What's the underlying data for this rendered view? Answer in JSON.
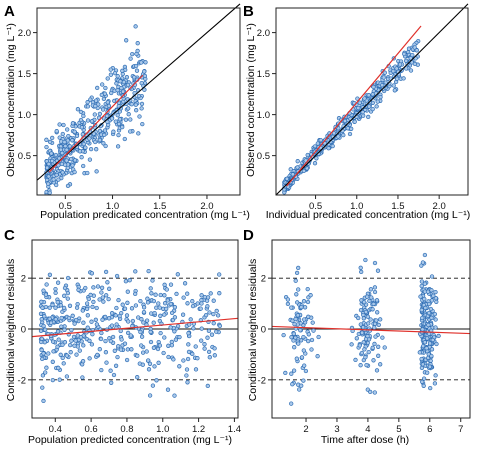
{
  "chart_data": [
    {
      "type": "scatter",
      "panel_label": "A",
      "xlabel": "Population predicated concentration (mg L⁻¹)",
      "ylabel": "Observed concentration (mg L⁻¹)",
      "xlim": [
        0.2,
        2.35
      ],
      "ylim": [
        0.02,
        2.3
      ],
      "xticks": [
        0.5,
        1.0,
        1.5,
        2.0
      ],
      "xtick_labels": [
        "0.5",
        "1.0",
        "1.5",
        "2.0"
      ],
      "yticks": [
        0.5,
        1.0,
        1.5,
        2.0
      ],
      "ytick_labels": [
        "0.5",
        "1.0",
        "1.5",
        "2.0"
      ],
      "identity_line": {
        "x": [
          0.2,
          2.35
        ],
        "y": [
          0.2,
          2.35
        ]
      },
      "trend_line": {
        "x": [
          0.33,
          1.32
        ],
        "y": [
          0.3,
          1.48
        ]
      },
      "scatter_series": {
        "x_range": [
          0.3,
          1.35
        ],
        "slope": 1.15,
        "intercept": -0.06,
        "spread": 0.2,
        "n": 480
      }
    },
    {
      "type": "scatter",
      "panel_label": "B",
      "xlabel": "Individual predicated concentration (mg L⁻¹)",
      "ylabel": "Observed concentration (mg L⁻¹)",
      "xlim": [
        0.02,
        2.35
      ],
      "ylim": [
        0.02,
        2.3
      ],
      "xticks": [
        0.5,
        1.0,
        1.5,
        2.0
      ],
      "xtick_labels": [
        "0.5",
        "1.0",
        "1.5",
        "2.0"
      ],
      "yticks": [
        0.5,
        1.0,
        1.5,
        2.0
      ],
      "ytick_labels": [
        "0.5",
        "1.0",
        "1.5",
        "2.0"
      ],
      "identity_line": {
        "x": [
          0.02,
          2.35
        ],
        "y": [
          0.02,
          2.35
        ]
      },
      "trend_line": {
        "x": [
          0.15,
          1.78
        ],
        "y": [
          0.13,
          2.08
        ]
      },
      "scatter_series": {
        "x_range": [
          0.12,
          1.75
        ],
        "slope": 1.03,
        "intercept": 0.0,
        "spread": 0.06,
        "n": 480
      }
    },
    {
      "type": "scatter",
      "panel_label": "C",
      "xlabel": "Population predicted concentration (mg L⁻¹)",
      "ylabel": "Conditional weighted residuals",
      "xlim": [
        0.27,
        1.42
      ],
      "ylim": [
        -3.5,
        3.5
      ],
      "xticks": [
        0.4,
        0.6,
        0.8,
        1.0,
        1.2,
        1.4
      ],
      "xtick_labels": [
        "0.4",
        "0.6",
        "0.8",
        "1.0",
        "1.2",
        "1.4"
      ],
      "yticks": [
        -2,
        0,
        2
      ],
      "ytick_labels": [
        "-2",
        "0",
        "2"
      ],
      "reference_lines": [
        {
          "y": 2,
          "style": "dashed"
        },
        {
          "y": 0,
          "style": "solid"
        },
        {
          "y": -2,
          "style": "dashed"
        }
      ],
      "trend_line": {
        "x": [
          0.27,
          1.42
        ],
        "y": [
          -0.3,
          0.42
        ]
      },
      "scatter_series": {
        "x_range": [
          0.32,
          1.32
        ],
        "slope": 0,
        "intercept": 0,
        "spread": 1.0,
        "n": 480
      }
    },
    {
      "type": "scatter",
      "panel_label": "D",
      "xlabel": "Time after dose (h)",
      "ylabel": "Conditional weighted residuals",
      "xlim": [
        0.9,
        7.3
      ],
      "ylim": [
        -3.5,
        3.5
      ],
      "xticks": [
        2,
        3,
        4,
        5,
        6,
        7
      ],
      "xtick_labels": [
        "2",
        "3",
        "4",
        "5",
        "6",
        "7"
      ],
      "yticks": [
        -2,
        0,
        2
      ],
      "ytick_labels": [
        "-2",
        "0",
        "2"
      ],
      "reference_lines": [
        {
          "y": 2,
          "style": "dashed"
        },
        {
          "y": 0,
          "style": "solid"
        },
        {
          "y": -2,
          "style": "dashed"
        }
      ],
      "trend_line": {
        "x": [
          0.9,
          7.3
        ],
        "y": [
          0.1,
          -0.18
        ]
      },
      "time_clusters": [
        {
          "center": 1.8,
          "spread": 0.22,
          "n": 90
        },
        {
          "center": 4.0,
          "spread": 0.2,
          "n": 120
        },
        {
          "center": 5.8,
          "spread": 0.05,
          "n": 110
        },
        {
          "center": 6.0,
          "spread": 0.1,
          "n": 120
        }
      ]
    }
  ],
  "colors": {
    "marker_stroke": "#2e6db4",
    "marker_fill": "#a9c8ea",
    "trend": "#e0312b",
    "identity": "#000000",
    "axis": "#222222"
  }
}
